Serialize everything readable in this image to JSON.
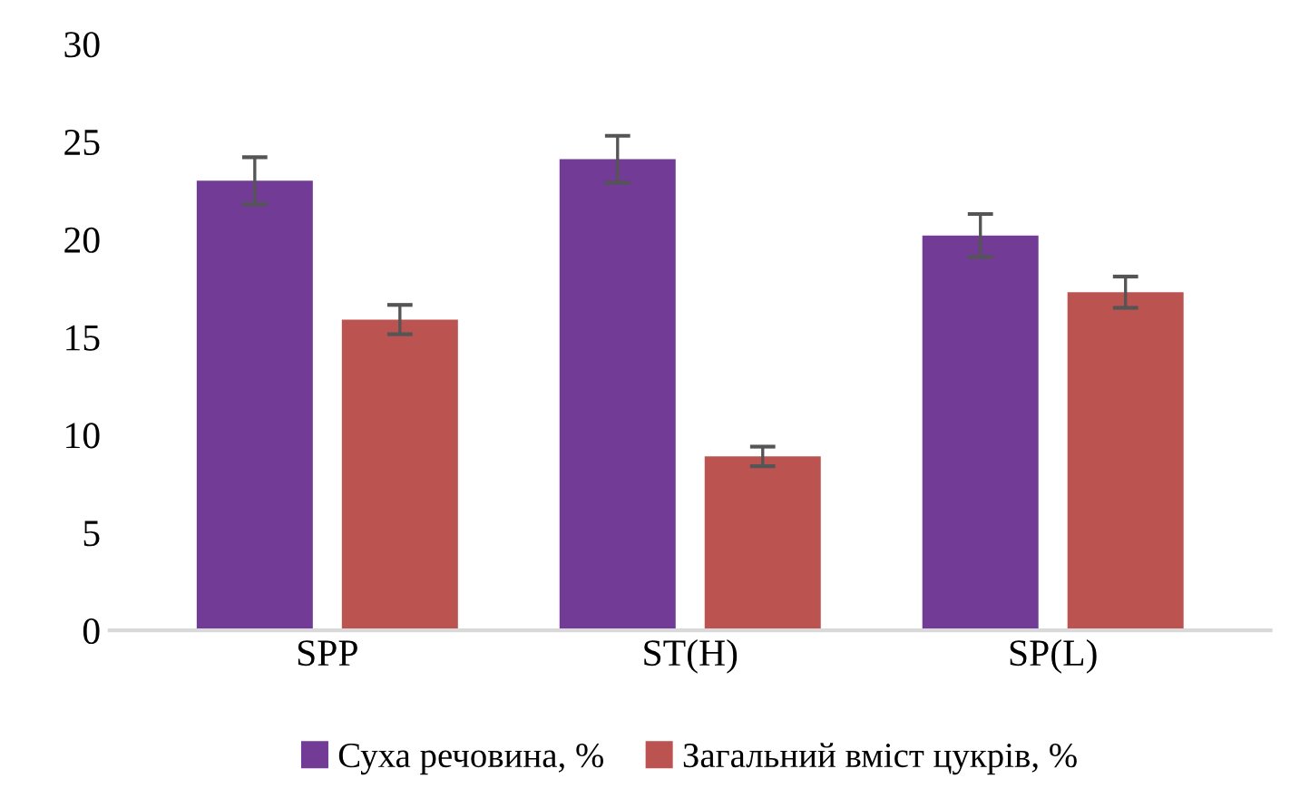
{
  "chart_data": {
    "type": "bar",
    "categories": [
      "SPP",
      "ST(H)",
      "SP(L)"
    ],
    "series": [
      {
        "name": "Суха речовина, %",
        "color": "#713b96",
        "values": [
          23.0,
          24.1,
          20.2
        ],
        "errors": [
          1.2,
          1.2,
          1.1
        ]
      },
      {
        "name": "Загальний вміст цукрів, %",
        "color": "#bb5350",
        "values": [
          15.9,
          8.9,
          17.3
        ],
        "errors": [
          0.75,
          0.5,
          0.8
        ]
      }
    ],
    "ylim": [
      0,
      30
    ],
    "yticks": [
      0,
      5,
      10,
      15,
      20,
      25,
      30
    ],
    "grid": false,
    "legend": "bottom"
  }
}
